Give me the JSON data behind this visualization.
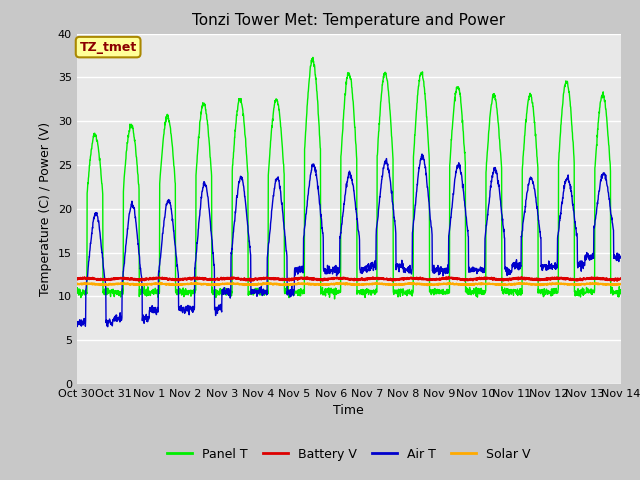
{
  "title": "Tonzi Tower Met: Temperature and Power",
  "ylabel": "Temperature (C) / Power (V)",
  "xlabel": "Time",
  "ylim": [
    0,
    40
  ],
  "yticks": [
    0,
    5,
    10,
    15,
    20,
    25,
    30,
    35,
    40
  ],
  "fig_bg_color": "#c8c8c8",
  "plot_bg_color": "#e8e8e8",
  "legend_label": "TZ_tmet",
  "legend_entries": [
    "Panel T",
    "Battery V",
    "Air T",
    "Solar V"
  ],
  "legend_colors": [
    "#00ee00",
    "#dd0000",
    "#0000cc",
    "#ffaa00"
  ],
  "x_tick_labels": [
    "Oct 30",
    "Oct 31",
    "Nov 1",
    "Nov 2",
    "Nov 3",
    "Nov 4",
    "Nov 5",
    "Nov 6",
    "Nov 7",
    "Nov 8",
    "Nov 9",
    "Nov 10",
    "Nov 11",
    "Nov 12",
    "Nov 13",
    "Nov 14"
  ],
  "num_days": 15,
  "panel_peaks": [
    28.5,
    29.5,
    30.5,
    32.0,
    32.5,
    32.5,
    37.0,
    35.5,
    35.5,
    35.5,
    34.0,
    33.0,
    33.0,
    34.5,
    33.0
  ],
  "air_peaks": [
    19.5,
    20.5,
    21.0,
    23.0,
    23.5,
    23.5,
    25.0,
    24.0,
    25.5,
    26.0,
    25.0,
    24.5,
    23.5,
    23.5,
    24.0
  ],
  "air_troughs": [
    7.0,
    7.5,
    8.5,
    8.5,
    10.5,
    10.5,
    13.0,
    13.0,
    13.5,
    13.0,
    13.0,
    13.0,
    13.5,
    13.5,
    14.5
  ],
  "battery_base": 12.0,
  "solar_base": 11.4
}
